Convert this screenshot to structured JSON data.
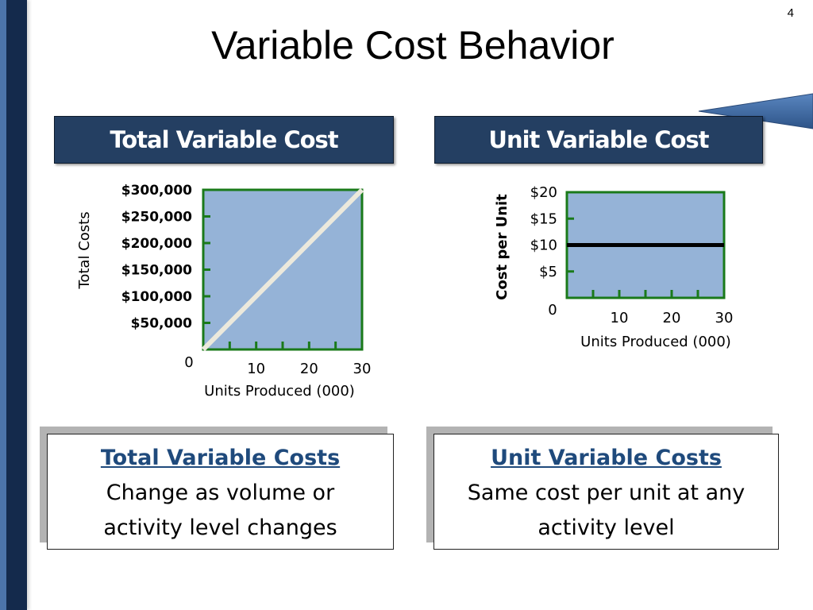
{
  "page_number": "4",
  "title": "Variable Cost Behavior",
  "headers": {
    "left": "Total Variable Cost",
    "right": "Unit Variable Cost"
  },
  "colors": {
    "header_bg": "#243f62",
    "plot_bg": "#95b3d7",
    "plot_border": "#1a7a1a",
    "note_heading": "#1f4a7c"
  },
  "chart_data": [
    {
      "type": "line",
      "ylabel": "Total Costs",
      "xlabel": "Units Produced (000)",
      "y_ticks": [
        "$300,000",
        "$250,000",
        "$200,000",
        "$150,000",
        "$100,000",
        "$50,000"
      ],
      "y_tick_values": [
        300000,
        250000,
        200000,
        150000,
        100000,
        50000
      ],
      "x_ticks": [
        "10",
        "20",
        "30"
      ],
      "x_tick_values": [
        10,
        20,
        30
      ],
      "origin_label": "0",
      "xlim": [
        0,
        30
      ],
      "ylim": [
        0,
        300000
      ],
      "series": [
        {
          "x": [
            0,
            30
          ],
          "y": [
            0,
            300000
          ]
        }
      ]
    },
    {
      "type": "line",
      "ylabel": "Cost per Unit",
      "xlabel": "Units Produced (000)",
      "y_ticks": [
        "$20",
        "$15",
        "$10",
        "$5"
      ],
      "y_tick_values": [
        20,
        15,
        10,
        5
      ],
      "x_ticks": [
        "10",
        "20",
        "30"
      ],
      "x_tick_values": [
        10,
        20,
        30
      ],
      "origin_label": "0",
      "xlim": [
        0,
        30
      ],
      "ylim": [
        0,
        20
      ],
      "series": [
        {
          "x": [
            0,
            30
          ],
          "y": [
            10,
            10
          ]
        }
      ]
    }
  ],
  "notes": {
    "left": {
      "heading": "Total Variable Costs",
      "line1": "Change as volume or",
      "line2": "activity level changes"
    },
    "right": {
      "heading": "Unit Variable Costs",
      "line1": "Same cost per unit at any",
      "line2": "activity level"
    }
  }
}
